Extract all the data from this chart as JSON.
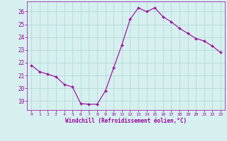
{
  "x": [
    0,
    1,
    2,
    3,
    4,
    5,
    6,
    7,
    8,
    9,
    10,
    11,
    12,
    13,
    14,
    15,
    16,
    17,
    18,
    19,
    20,
    21,
    22,
    23
  ],
  "y": [
    21.8,
    21.3,
    21.1,
    20.9,
    20.3,
    20.1,
    18.8,
    18.75,
    18.75,
    19.8,
    21.6,
    23.4,
    25.4,
    26.3,
    26.0,
    26.3,
    25.6,
    25.2,
    24.7,
    24.3,
    23.9,
    23.7,
    23.3,
    22.8
  ],
  "line_color": "#990099",
  "marker": "P",
  "marker_size": 2.5,
  "bg_color": "#d6f0f0",
  "grid_color": "#b8d8d8",
  "xlabel": "Windchill (Refroidissement éolien,°C)",
  "xlabel_color": "#990099",
  "tick_color": "#990099",
  "yticks": [
    19,
    20,
    21,
    22,
    23,
    24,
    25,
    26
  ],
  "xtick_labels": [
    "0",
    "1",
    "2",
    "3",
    "4",
    "5",
    "6",
    "7",
    "8",
    "9",
    "10",
    "11",
    "12",
    "13",
    "14",
    "15",
    "16",
    "17",
    "18",
    "19",
    "20",
    "21",
    "22",
    "23"
  ],
  "xticks": [
    0,
    1,
    2,
    3,
    4,
    5,
    6,
    7,
    8,
    9,
    10,
    11,
    12,
    13,
    14,
    15,
    16,
    17,
    18,
    19,
    20,
    21,
    22,
    23
  ],
  "ylim": [
    18.3,
    26.8
  ],
  "xlim": [
    -0.5,
    23.5
  ]
}
